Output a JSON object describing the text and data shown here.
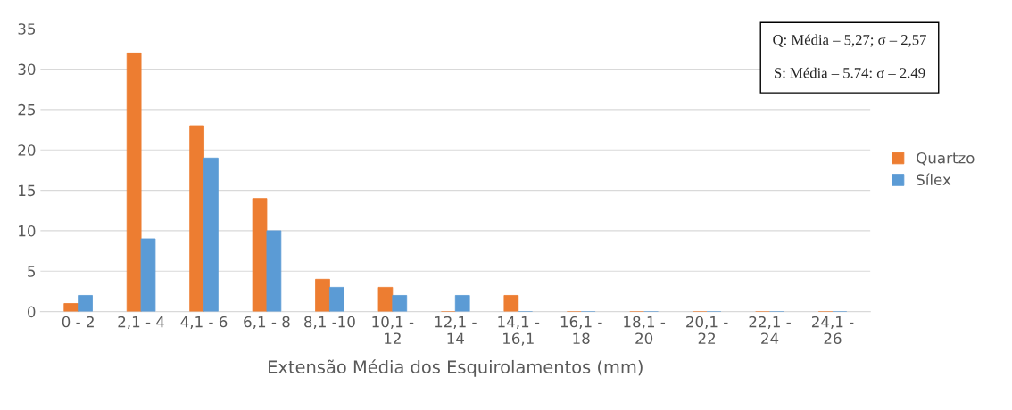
{
  "chart_data": {
    "type": "bar",
    "xlabel": "Extensão Média dos Esquirolamentos (mm)",
    "categories": [
      "0 - 2",
      "2,1 - 4",
      "4,1 - 6",
      "6,1 - 8",
      "8,1 -10",
      "10,1 - 12",
      "12,1 - 14",
      "14,1 - 16,1",
      "16,1 - 18",
      "18,1 - 20",
      "20,1 - 22",
      "22,1 - 24",
      "24,1 - 26"
    ],
    "series": [
      {
        "name": "Quartzo",
        "color": "#ed7d31",
        "values": [
          1,
          32,
          23,
          14,
          4,
          3,
          0,
          2,
          0,
          0,
          0,
          0,
          0
        ]
      },
      {
        "name": "Sílex",
        "color": "#5b9bd5",
        "values": [
          2,
          9,
          19,
          10,
          3,
          2,
          2,
          0,
          0,
          0,
          0,
          0,
          0
        ]
      }
    ],
    "ylim": [
      0,
      35
    ],
    "yticks": [
      0,
      5,
      10,
      15,
      20,
      25,
      30,
      35
    ],
    "grid": "y",
    "legend": "right",
    "annotations": [
      "Q: Média – 5,27; σ – 2,57",
      "S: Média – 5.74: σ – 2.49"
    ]
  }
}
